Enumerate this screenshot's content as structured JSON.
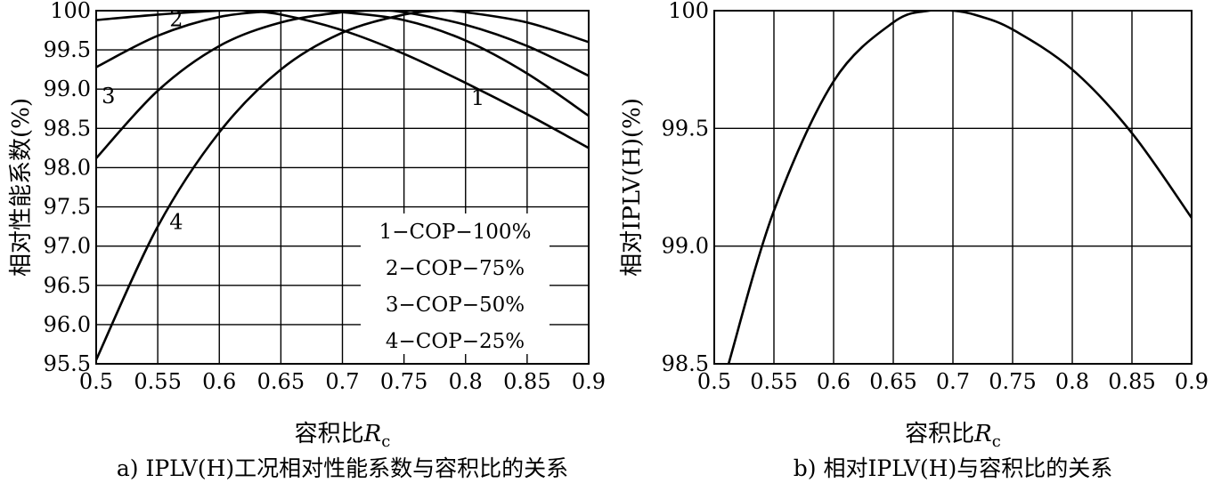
{
  "chart_data": [
    {
      "type": "line",
      "caption": "a) IPLV(H)工况相对性能系数与容积比的关系",
      "xlabel_prefix": "容积比",
      "xlabel_symbol": "R",
      "xlabel_subscript": "c",
      "ylabel": "相对性能系数(%)",
      "xlim": [
        0.5,
        0.9
      ],
      "ylim": [
        95.5,
        100
      ],
      "x_ticks": [
        "0.5",
        "0.55",
        "0.6",
        "0.65",
        "0.7",
        "0.75",
        "0.8",
        "0.85",
        "0.9"
      ],
      "y_ticks": [
        "95.5",
        "96.0",
        "96.5",
        "97.0",
        "97.5",
        "98.0",
        "98.5",
        "99.0",
        "99.5",
        "100"
      ],
      "grid": true,
      "legend": [
        "1−COP−100%",
        "2−COP−75%",
        "3−COP−50%",
        "4−COP−25%"
      ],
      "series": [
        {
          "name": "1",
          "x": [
            0.5,
            0.55,
            0.6,
            0.62,
            0.65,
            0.7,
            0.75,
            0.8,
            0.85,
            0.9
          ],
          "y": [
            99.88,
            99.95,
            100.0,
            100.0,
            99.95,
            99.75,
            99.45,
            99.08,
            98.68,
            98.25
          ]
        },
        {
          "name": "2",
          "x": [
            0.5,
            0.55,
            0.6,
            0.65,
            0.68,
            0.7,
            0.75,
            0.8,
            0.85,
            0.9
          ],
          "y": [
            99.28,
            99.68,
            99.92,
            100.0,
            100.0,
            99.98,
            99.88,
            99.62,
            99.2,
            98.66
          ]
        },
        {
          "name": "3",
          "x": [
            0.5,
            0.55,
            0.6,
            0.65,
            0.7,
            0.73,
            0.75,
            0.8,
            0.85,
            0.9
          ],
          "y": [
            98.12,
            98.98,
            99.55,
            99.85,
            99.98,
            100.0,
            99.98,
            99.82,
            99.55,
            99.17
          ]
        },
        {
          "name": "4",
          "x": [
            0.5,
            0.55,
            0.6,
            0.65,
            0.7,
            0.75,
            0.78,
            0.8,
            0.85,
            0.9
          ],
          "y": [
            95.55,
            97.25,
            98.45,
            99.25,
            99.72,
            99.95,
            100.0,
            99.98,
            99.85,
            99.6
          ]
        }
      ],
      "curve_labels": [
        {
          "text": "1",
          "x": 0.81,
          "y": 98.8
        },
        {
          "text": "2",
          "x": 0.565,
          "y": 99.8
        },
        {
          "text": "3",
          "x": 0.51,
          "y": 98.82
        },
        {
          "text": "4",
          "x": 0.565,
          "y": 97.22
        }
      ]
    },
    {
      "type": "line",
      "caption": "b) 相对IPLV(H)与容积比的关系",
      "xlabel_prefix": "容积比",
      "xlabel_symbol": "R",
      "xlabel_subscript": "c",
      "ylabel": "相对IPLV(H)(%)",
      "xlim": [
        0.5,
        0.9
      ],
      "ylim": [
        98.5,
        100
      ],
      "x_ticks": [
        "0.5",
        "0.55",
        "0.6",
        "0.65",
        "0.7",
        "0.75",
        "0.8",
        "0.85",
        "0.9"
      ],
      "y_ticks": [
        "98.5",
        "99.0",
        "99.5",
        "100"
      ],
      "grid": true,
      "series": [
        {
          "x": [
            0.512,
            0.55,
            0.6,
            0.65,
            0.68,
            0.7,
            0.72,
            0.75,
            0.8,
            0.85,
            0.9
          ],
          "y": [
            98.5,
            99.15,
            99.7,
            99.95,
            100.0,
            100.0,
            99.98,
            99.92,
            99.75,
            99.48,
            99.12
          ]
        }
      ]
    }
  ],
  "colors": {
    "line": "#000000",
    "background": "#ffffff"
  }
}
